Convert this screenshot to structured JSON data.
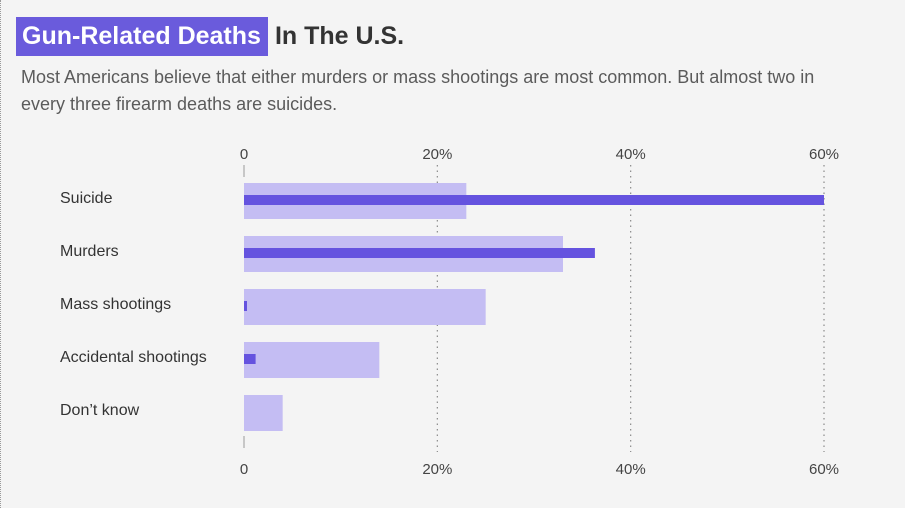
{
  "title": {
    "highlight": "Gun-Related Deaths",
    "rest": "In The U.S."
  },
  "subtitle": "Most Americans believe that either murders or mass shootings are most common. But almost two in every three firearm deaths are suicides.",
  "colors": {
    "perception_bar": "#c4bdf3",
    "actual_bar": "#6553df",
    "background": "#f4f4f4"
  },
  "chart_data": {
    "type": "bar",
    "orientation": "horizontal",
    "categories": [
      "Suicide",
      "Murders",
      "Mass shootings",
      "Accidental shootings",
      "Don’t know"
    ],
    "series": [
      {
        "values": [
          23,
          33,
          25,
          14,
          4
        ]
      },
      {
        "values": [
          60,
          36.3,
          0.3,
          1.2,
          null
        ]
      }
    ],
    "xlim": [
      0,
      60
    ],
    "xticks": [
      0,
      20,
      40,
      60
    ],
    "xtick_labels": [
      "0",
      "20%",
      "40%",
      "60%"
    ],
    "grid": "dotted vertical",
    "xlabel": "",
    "ylabel": ""
  }
}
